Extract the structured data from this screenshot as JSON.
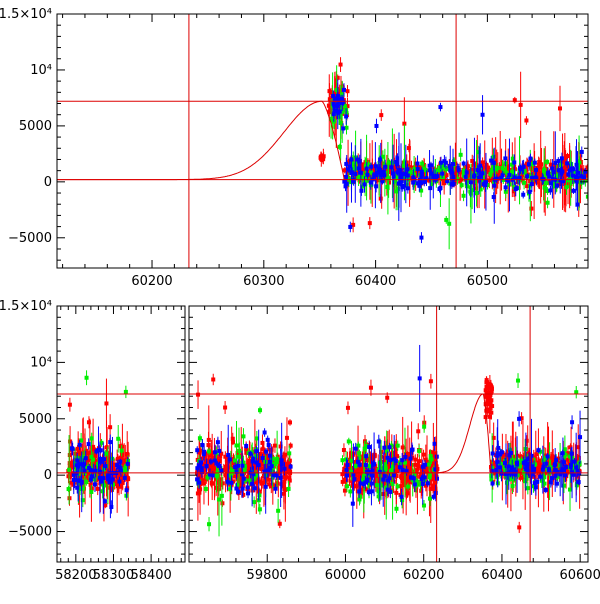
{
  "chart_data": [
    {
      "type": "scatter",
      "title": "",
      "xlabel": "",
      "ylabel": "",
      "xlim": [
        60115,
        60590
      ],
      "ylim": [
        -7700,
        15000
      ],
      "x_ticks": [
        60200,
        60300,
        60400,
        60500
      ],
      "y_ticks": [
        {
          "v": -5000,
          "label": "−5000"
        },
        {
          "v": 0,
          "label": "0"
        },
        {
          "v": 5000,
          "label": "5000"
        },
        {
          "v": 10000,
          "label": "10⁴"
        },
        {
          "v": 15000,
          "label": "1.5×10⁴"
        }
      ],
      "hlines": [
        200,
        7200
      ],
      "vlines": [
        60233,
        60472
      ],
      "model_curve": {
        "baseline": 200,
        "peak": 7200,
        "peak_x": 60352,
        "rise_width": 48,
        "decline_to": 60372
      },
      "series": [
        {
          "color": "#ff0000",
          "segments": [
            {
              "x0": 60350,
              "x1": 60355,
              "y_center": 2100,
              "scatter": 300,
              "n": 10
            },
            {
              "x0": 60358,
              "x1": 60375,
              "y_center": 7000,
              "scatter": 1500,
              "n": 50
            },
            {
              "x0": 60372,
              "x1": 60590,
              "y_center": 800,
              "scatter": 900,
              "n": 420
            }
          ]
        },
        {
          "color": "#00ee00",
          "segments": [
            {
              "x0": 60360,
              "x1": 60375,
              "y_center": 6500,
              "scatter": 1800,
              "n": 20
            },
            {
              "x0": 60372,
              "x1": 60590,
              "y_center": 600,
              "scatter": 1500,
              "n": 180
            }
          ]
        },
        {
          "color": "#0000ff",
          "segments": [
            {
              "x0": 60362,
              "x1": 60375,
              "y_center": 7000,
              "scatter": 1800,
              "n": 20
            },
            {
              "x0": 60372,
              "x1": 60590,
              "y_center": 700,
              "scatter": 1300,
              "n": 200
            }
          ]
        }
      ]
    },
    {
      "type": "scatter",
      "title": "",
      "xlabel": "",
      "ylabel": "",
      "panels": [
        {
          "xlim": [
            58150,
            58490
          ],
          "x_ticks": [
            58200,
            58300,
            58400
          ]
        },
        {
          "xlim": [
            59600,
            60620
          ],
          "x_ticks": [
            59800,
            60000,
            60200,
            60400,
            60600
          ]
        }
      ],
      "ylim": [
        -7700,
        15000
      ],
      "y_ticks": [
        {
          "v": -5000,
          "label": "−5000"
        },
        {
          "v": 0,
          "label": "0"
        },
        {
          "v": 5000,
          "label": "5000"
        },
        {
          "v": 10000,
          "label": "10⁴"
        },
        {
          "v": 15000,
          "label": "1.5×10⁴"
        }
      ],
      "hlines": [
        200,
        7200
      ],
      "vlines": [
        60233,
        60472
      ],
      "model_curve": {
        "baseline": 200,
        "peak": 7200,
        "peak_x": 60352,
        "rise_width": 48,
        "decline_to": 60372
      },
      "series": [
        {
          "color": "#ff0000",
          "segments": [
            {
              "x0": 58180,
              "x1": 58340,
              "y_center": 500,
              "scatter": 1800,
              "n": 260
            },
            {
              "x0": 59620,
              "x1": 59860,
              "y_center": 500,
              "scatter": 1900,
              "n": 300
            },
            {
              "x0": 59990,
              "x1": 60235,
              "y_center": 500,
              "scatter": 1800,
              "n": 320
            },
            {
              "x0": 60358,
              "x1": 60375,
              "y_center": 7000,
              "scatter": 1500,
              "n": 40
            },
            {
              "x0": 60372,
              "x1": 60600,
              "y_center": 800,
              "scatter": 1000,
              "n": 280
            }
          ]
        },
        {
          "color": "#00ee00",
          "segments": [
            {
              "x0": 58180,
              "x1": 58340,
              "y_center": 400,
              "scatter": 2500,
              "n": 50
            },
            {
              "x0": 59620,
              "x1": 59860,
              "y_center": 400,
              "scatter": 2600,
              "n": 60
            },
            {
              "x0": 59990,
              "x1": 60235,
              "y_center": 300,
              "scatter": 2800,
              "n": 70
            },
            {
              "x0": 60372,
              "x1": 60600,
              "y_center": 600,
              "scatter": 1500,
              "n": 80
            }
          ]
        },
        {
          "color": "#0000ff",
          "segments": [
            {
              "x0": 58180,
              "x1": 58340,
              "y_center": 500,
              "scatter": 2300,
              "n": 60
            },
            {
              "x0": 59620,
              "x1": 59860,
              "y_center": 500,
              "scatter": 2200,
              "n": 70
            },
            {
              "x0": 59990,
              "x1": 60235,
              "y_center": 400,
              "scatter": 2400,
              "n": 70
            },
            {
              "x0": 60372,
              "x1": 60600,
              "y_center": 700,
              "scatter": 1300,
              "n": 90
            }
          ]
        }
      ]
    }
  ]
}
